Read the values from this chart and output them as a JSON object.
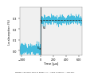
{
  "title": "",
  "xlabel": "Time [μs]",
  "ylabel": "Lα absorption (%)",
  "xlim": [
    -330,
    650
  ],
  "ylim": [
    -0.04,
    0.4
  ],
  "yticks": [
    0.0,
    0.1,
    0.2,
    0.3
  ],
  "ytick_labels": [
    "0.00",
    "0.1",
    "0.2",
    "0.3"
  ],
  "xticks": [
    -300,
    0,
    200,
    400,
    600
  ],
  "signal_color": "#44bbdd",
  "background_color": "#ffffff",
  "plot_bg": "#f0f0f0",
  "noise_pre_amplitude": 0.025,
  "noise_post_amplitude": 0.022,
  "pre_level": 0.015,
  "post_level": 0.285,
  "IS_time": 0,
  "caption": "Mixing: 100 ppm SiCl₄ in argon. T₀ = 1064 K and P₀ = 168 kPa.",
  "annotation_IS": "IS",
  "annotation_RS": "RS",
  "dashed_line_color": "#222222",
  "dashed_line_y": 0.285,
  "vline_color": "#222222",
  "arrow_color": "#111111"
}
